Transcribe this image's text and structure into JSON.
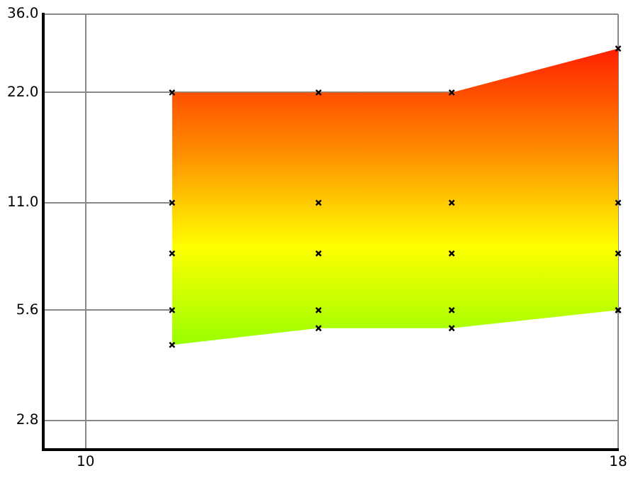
{
  "chart_data": {
    "type": "scatter",
    "x": [
      11.3,
      13.5,
      15.5,
      18
    ],
    "xlim": [
      9.36,
      18
    ],
    "xticks": [
      10,
      18
    ],
    "ylim": [
      2.33,
      36
    ],
    "yticks": [
      {
        "value": 2.8,
        "label": "2.8"
      },
      {
        "value": 5.6,
        "label": "5.6"
      },
      {
        "value": 11,
        "label": "11.0"
      },
      {
        "value": 22,
        "label": "22.0"
      },
      {
        "value": 36,
        "label": "36.0"
      }
    ],
    "log": "y",
    "grid": true,
    "legend": false,
    "marker": "cross",
    "series": [
      {
        "type": "scatter",
        "color": "#000000",
        "values": [
          8,
          8,
          8,
          8
        ],
        "lower": [
          4.5,
          5,
          5,
          5.6
        ],
        "upper": [
          22,
          22,
          22,
          29
        ]
      },
      {
        "type": "scatter",
        "color": "#000000",
        "values": [
          22,
          22,
          22,
          29
        ]
      },
      {
        "type": "scatter",
        "color": "#000000",
        "values": [
          11,
          11,
          11,
          11
        ]
      },
      {
        "type": "scatter",
        "color": "#000000",
        "values": [
          5.6,
          5.6,
          5.6,
          5.6
        ]
      },
      {
        "type": "scatter",
        "color": "#000000",
        "values": [
          4.5,
          5,
          5,
          5.6
        ]
      }
    ]
  }
}
